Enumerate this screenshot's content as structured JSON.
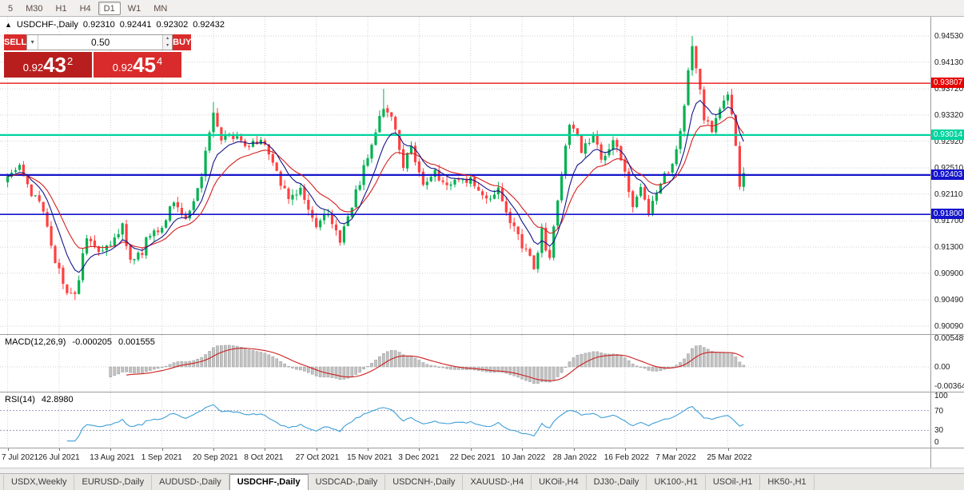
{
  "toolbar": {
    "timeframes": [
      "5",
      "M30",
      "H1",
      "H4",
      "D1",
      "W1",
      "MN"
    ],
    "active": "D1"
  },
  "header": {
    "collapse_arrow": "▲",
    "title": "USDCHF-,Daily",
    "open": "0.92310",
    "high": "0.92441",
    "low": "0.92302",
    "close": "0.92432"
  },
  "trade_panel": {
    "sell_label": "SELL",
    "buy_label": "BUY",
    "volume": "0.50",
    "bid": {
      "prefix": "0.92",
      "main": "43",
      "sup": "2"
    },
    "ask": {
      "prefix": "0.92",
      "main": "45",
      "sup": "4"
    },
    "colors": {
      "sell_bg": "#d92b2b",
      "buy_bg": "#d92b2b",
      "bid_bg": "#b81e1e",
      "ask_bg": "#d92b2b"
    }
  },
  "icons": {
    "dropdown": "▾",
    "spin_up": "▴",
    "spin_down": "▾"
  },
  "macd_panel": {
    "name": "MACD(12,26,9)",
    "value": "-0.000205",
    "signal_value": "0.001555",
    "axis": [
      {
        "label": "0.005489",
        "value": 0.005489
      },
      {
        "label": "0.00",
        "value": 0
      },
      {
        "label": "-0.00364",
        "value": -0.00364
      }
    ]
  },
  "rsi_panel": {
    "name": "RSI(14)",
    "value": "42.8980",
    "levels": [
      70,
      30
    ],
    "axis": [
      {
        "label": "100",
        "value": 100
      },
      {
        "label": "70",
        "value": 70
      },
      {
        "label": "30",
        "value": 30
      },
      {
        "label": "0",
        "value": 0
      }
    ]
  },
  "tabs": {
    "active": "USDCHF-,Daily",
    "items": [
      "USDX,Weekly",
      "EURUSD-,Daily",
      "AUDUSD-,Daily",
      "USDCHF-,Daily",
      "USDCAD-,Daily",
      "USDCNH-,Daily",
      "XAUUSD-,H4",
      "UKOil-,H4",
      "DJ30-,Daily",
      "UK100-,H1",
      "USOil-,H1",
      "HK50-,H1"
    ]
  },
  "chart_data": {
    "type": "candlestick",
    "symbol": "USDCHF-",
    "timeframe": "Daily",
    "current_ohlc": {
      "open": 0.9231,
      "high": 0.92441,
      "low": 0.92302,
      "close": 0.92432
    },
    "y_axis_ticks": [
      0.9453,
      0.9413,
      0.9372,
      0.9332,
      0.9292,
      0.9251,
      0.9211,
      0.917,
      0.913,
      0.909,
      0.9049,
      0.9009
    ],
    "x_axis_labels": [
      "7 Jul 2021",
      "26 Jul 2021",
      "13 Aug 2021",
      "1 Sep 2021",
      "20 Sep 2021",
      "8 Oct 2021",
      "27 Oct 2021",
      "15 Nov 2021",
      "3 Dec 2021",
      "22 Dec 2021",
      "10 Jan 2022",
      "28 Jan 2022",
      "16 Feb 2022",
      "7 Mar 2022",
      "25 Mar 2022"
    ],
    "bars_count": 187,
    "bars_per_label": 13,
    "levels": [
      {
        "label": "0.93807",
        "value": 0.93807,
        "color": "#e60000",
        "width": 1.3
      },
      {
        "label": "0.93014",
        "value": 0.93014,
        "color": "#00d49e",
        "width": 2.2
      },
      {
        "label": "0.92403",
        "value": 0.92403,
        "color": "#1414cc",
        "width": 2.2
      },
      {
        "label": "0.91800",
        "value": 0.918,
        "color": "#1414cc",
        "width": 1.6
      }
    ],
    "price_anchors": [
      [
        0,
        0.9237
      ],
      [
        3,
        0.925
      ],
      [
        6,
        0.9215
      ],
      [
        9,
        0.9185
      ],
      [
        12,
        0.911
      ],
      [
        15,
        0.9065
      ],
      [
        17,
        0.9055
      ],
      [
        20,
        0.9142
      ],
      [
        23,
        0.9122
      ],
      [
        26,
        0.9138
      ],
      [
        29,
        0.9162
      ],
      [
        31,
        0.9105
      ],
      [
        34,
        0.9125
      ],
      [
        36,
        0.915
      ],
      [
        39,
        0.9158
      ],
      [
        42,
        0.9205
      ],
      [
        45,
        0.9168
      ],
      [
        48,
        0.9215
      ],
      [
        50,
        0.927
      ],
      [
        52,
        0.933
      ],
      [
        54,
        0.9295
      ],
      [
        57,
        0.9302
      ],
      [
        60,
        0.9285
      ],
      [
        63,
        0.9295
      ],
      [
        65,
        0.9282
      ],
      [
        68,
        0.9242
      ],
      [
        71,
        0.9205
      ],
      [
        74,
        0.9218
      ],
      [
        78,
        0.9155
      ],
      [
        81,
        0.9185
      ],
      [
        84,
        0.9136
      ],
      [
        87,
        0.9195
      ],
      [
        90,
        0.925
      ],
      [
        93,
        0.9305
      ],
      [
        95,
        0.9348
      ],
      [
        97,
        0.9332
      ],
      [
        100,
        0.9252
      ],
      [
        102,
        0.9282
      ],
      [
        105,
        0.9232
      ],
      [
        108,
        0.9246
      ],
      [
        111,
        0.9222
      ],
      [
        114,
        0.924
      ],
      [
        117,
        0.9232
      ],
      [
        121,
        0.9198
      ],
      [
        124,
        0.9218
      ],
      [
        127,
        0.9165
      ],
      [
        130,
        0.9135
      ],
      [
        133,
        0.9098
      ],
      [
        135,
        0.9152
      ],
      [
        137,
        0.9112
      ],
      [
        140,
        0.9245
      ],
      [
        142,
        0.9322
      ],
      [
        145,
        0.928
      ],
      [
        148,
        0.9305
      ],
      [
        150,
        0.9265
      ],
      [
        153,
        0.9292
      ],
      [
        156,
        0.9248
      ],
      [
        158,
        0.9195
      ],
      [
        160,
        0.9225
      ],
      [
        162,
        0.918
      ],
      [
        164,
        0.921
      ],
      [
        166,
        0.924
      ],
      [
        168,
        0.9258
      ],
      [
        170,
        0.931
      ],
      [
        172,
        0.9395
      ],
      [
        173,
        0.9435
      ],
      [
        174,
        0.9405
      ],
      [
        175,
        0.937
      ],
      [
        176,
        0.933
      ],
      [
        178,
        0.93
      ],
      [
        180,
        0.9342
      ],
      [
        182,
        0.9362
      ],
      [
        183,
        0.9332
      ],
      [
        184,
        0.9286
      ],
      [
        185,
        0.9228
      ],
      [
        186,
        0.92432
      ]
    ],
    "wick_overrides": [
      {
        "i": 17,
        "low": 0.9049
      },
      {
        "i": 52,
        "high": 0.9352
      },
      {
        "i": 95,
        "high": 0.9372
      },
      {
        "i": 173,
        "high": 0.9453
      }
    ],
    "seed": 42,
    "indicators": {
      "ma_fast_period": 8,
      "ma_slow_period": 16,
      "macd_params": [
        12,
        26,
        9
      ],
      "rsi_period": 14
    },
    "colors": {
      "up": "#00b050",
      "down": "#ff4040",
      "ma_fast": "#151587",
      "ma_slow": "#d42020",
      "macd_hist": "#c2c2c2",
      "macd_hist_stroke": "#9e9e9e",
      "macd_signal": "#cc1f1f",
      "rsi_line": "#3f9fd8",
      "grid": "#d2d2d2",
      "level_dotted": "#9aa0c0"
    }
  }
}
